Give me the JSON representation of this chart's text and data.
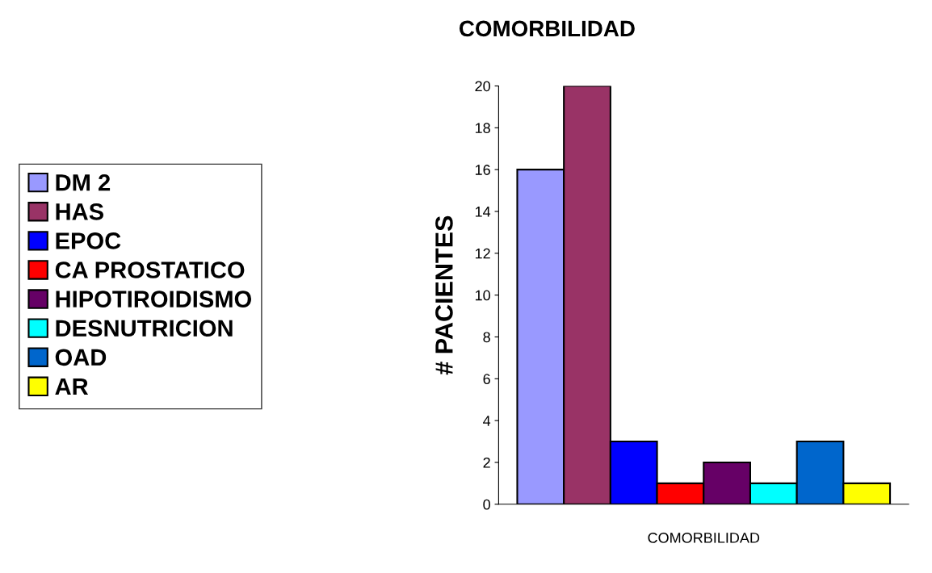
{
  "chart_data": {
    "type": "bar",
    "title": "COMORBILIDAD",
    "xlabel": "COMORBILIDAD",
    "ylabel": "# PACIENTES",
    "categories": [
      null
    ],
    "series": [
      {
        "name": "DM 2",
        "color": "#9999ff",
        "values": [
          16
        ]
      },
      {
        "name": "HAS",
        "color": "#993366",
        "values": [
          20
        ]
      },
      {
        "name": "EPOC",
        "color": "#0000ff",
        "values": [
          3
        ]
      },
      {
        "name": "CA PROSTATICO",
        "color": "#ff0000",
        "values": [
          1
        ]
      },
      {
        "name": "HIPOTIROIDISMO",
        "color": "#660066",
        "values": [
          2
        ]
      },
      {
        "name": "DESNUTRICION",
        "color": "#00ffff",
        "values": [
          1
        ]
      },
      {
        "name": "OAD",
        "color": "#0066cc",
        "values": [
          3
        ]
      },
      {
        "name": "AR",
        "color": "#ffff00",
        "values": [
          1
        ]
      }
    ],
    "ylim": [
      0,
      20
    ],
    "yticks": [
      0,
      2,
      4,
      6,
      8,
      10,
      12,
      14,
      16,
      18,
      20
    ],
    "tick_labels": "y",
    "grid": false,
    "legend": "left"
  }
}
